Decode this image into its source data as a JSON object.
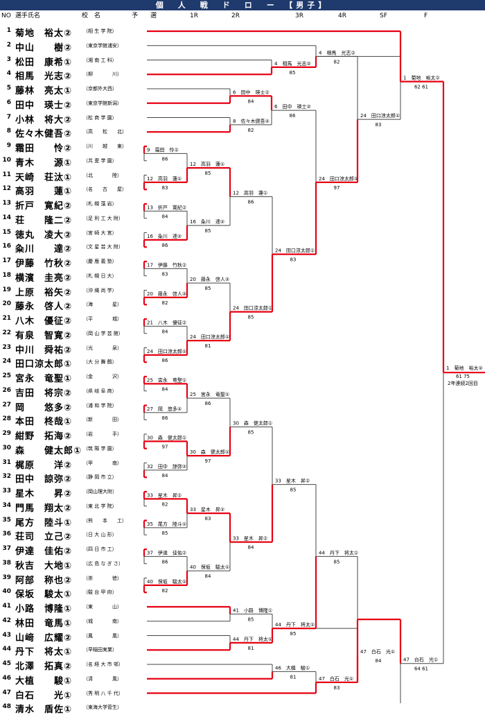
{
  "title": "個　人　戦　ド　ロ　ー　【男子】",
  "headers": {
    "no": "NO",
    "name": "選手氏名",
    "school": "校　名",
    "prelim": "予　　選",
    "r1": "1R",
    "r2": "2R",
    "r3": "3R",
    "r4": "4R",
    "sf": "SF",
    "f": "F"
  },
  "players": [
    {
      "no": "1",
      "name": "菊地　裕太②",
      "school": "（相 生 学 院）"
    },
    {
      "no": "2",
      "name": "中山　　樹②",
      "school": "（東京学館浦安）"
    },
    {
      "no": "3",
      "name": "松田　康希①",
      "school": "（湘 南 工 科）"
    },
    {
      "no": "4",
      "name": "相馬　光志②",
      "school": "（柳　　　　川）"
    },
    {
      "no": "5",
      "name": "藤林　亮太①",
      "school": "（京都外大西）"
    },
    {
      "no": "6",
      "name": "田中　瑛士②",
      "school": "（東京学館新潟）"
    },
    {
      "no": "7",
      "name": "小林　将大②",
      "school": "（松 商 学 園）"
    },
    {
      "no": "8",
      "name": "佐々木健吾②",
      "school": "（高　　松　　北）"
    },
    {
      "no": "9",
      "name": "霜田　　怜②",
      "school": "（川　　越　　東）"
    },
    {
      "no": "10",
      "name": "青木　　源①",
      "school": "（共 愛 学 園）"
    },
    {
      "no": "11",
      "name": "天崎　荘汰①",
      "school": "（北　　　　陸）"
    },
    {
      "no": "12",
      "name": "高羽　　蓮①",
      "school": "（名　　古　　屋）"
    },
    {
      "no": "13",
      "name": "折戸　寛紀②",
      "school": "（札 幌 藻 岩）"
    },
    {
      "no": "14",
      "name": "荘　　隆二②",
      "school": "（足 利 工 大 附）"
    },
    {
      "no": "15",
      "name": "徳丸　凌大②",
      "school": "（宮 崎 大 宮）"
    },
    {
      "no": "16",
      "name": "粂川　　達②",
      "school": "（文 星 芸 大 附）"
    },
    {
      "no": "17",
      "name": "伊藤　竹秋②",
      "school": "（慶 應 義 塾）"
    },
    {
      "no": "18",
      "name": "横濱　圭亮②",
      "school": "（札 幌 日 大）"
    },
    {
      "no": "19",
      "name": "上原　裕矢②",
      "school": "（沖 縄 尚 学）"
    },
    {
      "no": "20",
      "name": "藤永　啓人②",
      "school": "（海　　　　星）"
    },
    {
      "no": "21",
      "name": "八木　優征②",
      "school": "（平　　　　城）"
    },
    {
      "no": "22",
      "name": "有泉　智寛②",
      "school": "（岡 山 学 芸 館）"
    },
    {
      "no": "23",
      "name": "中川　舜祐②",
      "school": "（光　　　　泉）"
    },
    {
      "no": "24",
      "name": "田口涼太郎①",
      "school": "（大 分 舞 鶴）"
    },
    {
      "no": "25",
      "name": "宮永　竜聖①",
      "school": "（金　　　　沢）"
    },
    {
      "no": "26",
      "name": "吉田　将宗②",
      "school": "（県 岐 阜 商）"
    },
    {
      "no": "27",
      "name": "岡　　悠多②",
      "school": "（浦 和 学 院）"
    },
    {
      "no": "28",
      "name": "本田　柊哉①",
      "school": "（新　　　　田）"
    },
    {
      "no": "29",
      "name": "紺野　拓海②",
      "school": "（岩　　　　手）"
    },
    {
      "no": "30",
      "name": "森　　健太郎①",
      "school": "（筑 陽 学 園）"
    },
    {
      "no": "31",
      "name": "梶原　　洋②",
      "school": "（甲　　　　南）"
    },
    {
      "no": "32",
      "name": "田中　諒弥②",
      "school": "（静 岡 市 立）"
    },
    {
      "no": "33",
      "name": "星木　　昇②",
      "school": "（岡山理大附）"
    },
    {
      "no": "34",
      "name": "門馬　翔太②",
      "school": "（東 北 学 院）"
    },
    {
      "no": "35",
      "name": "尾方　陸斗①",
      "school": "（熊　　本　　工）"
    },
    {
      "no": "36",
      "name": "荘司　立己②",
      "school": "（日 大 山 形）"
    },
    {
      "no": "37",
      "name": "伊達　佳佑②",
      "school": "（四 日 市 工）"
    },
    {
      "no": "38",
      "name": "秋吉　大地①",
      "school": "（広 島 な ぎ さ）"
    },
    {
      "no": "39",
      "name": "阿部　称也②",
      "school": "（崇　　　　徳）"
    },
    {
      "no": "40",
      "name": "保坂　駿太①",
      "school": "（駿 台 甲 府）"
    },
    {
      "no": "41",
      "name": "小路　博隆①",
      "school": "（東　　　　山）"
    },
    {
      "no": "42",
      "name": "林田　竜馬①",
      "school": "（城　　　　南）"
    },
    {
      "no": "43",
      "name": "山﨑　広耀②",
      "school": "（鳳　　　　凰）"
    },
    {
      "no": "44",
      "name": "丹下　将太①",
      "school": "（早稲田実業）"
    },
    {
      "no": "45",
      "name": "北澤　拓真②",
      "school": "（名 経 大 市 邨）"
    },
    {
      "no": "46",
      "name": "大植　　駿①",
      "school": "（清　　　　風）"
    },
    {
      "no": "47",
      "name": "白石　　光①",
      "school": "（秀 明 八 千 代）"
    },
    {
      "no": "48",
      "name": "清水　盾佐①",
      "school": "（東海大学菅生）"
    }
  ],
  "results": {
    "prelim": [
      {
        "label": "4　相馬　光志②",
        "score": "85"
      },
      {
        "label": "6　田中　瑛士②",
        "score": "84"
      },
      {
        "label": "8　佐々木健吾②",
        "score": "82"
      },
      {
        "label": "9　霜田　怜②",
        "score": "86"
      },
      {
        "label": "12　高羽　蓮①",
        "score": "83"
      },
      {
        "label": "13　折戸　寛紀②",
        "score": "84"
      },
      {
        "label": "16　粂川　達②",
        "score": "86"
      },
      {
        "label": "17　伊藤　竹秋②",
        "score": "83"
      },
      {
        "label": "20　藤永　啓人②",
        "score": "82"
      },
      {
        "label": "21　八木　優征②",
        "score": "84"
      },
      {
        "label": "24　田口涼太郎①",
        "score": "86"
      },
      {
        "label": "25　宮永　竜聖①",
        "score": "84"
      },
      {
        "label": "27　岡　悠多②",
        "score": "86"
      },
      {
        "label": "30　森　健太郎①",
        "score": "97"
      },
      {
        "label": "32　田中　諒弥②",
        "score": "84"
      },
      {
        "label": "33　星木　昇②",
        "score": "82"
      },
      {
        "label": "35　尾方　陸斗①",
        "score": "85"
      },
      {
        "label": "37　伊達　佳佑②",
        "score": "86"
      },
      {
        "label": "40　保坂　駿太①",
        "score": "82"
      },
      {
        "label": "41　小路　博隆①",
        "score": "85"
      },
      {
        "label": "44　丹下　将太①",
        "score": "81"
      },
      {
        "label": "46　大植　駿①",
        "score": "81"
      }
    ],
    "r1": [
      {
        "label": "6　田中　瑛士②",
        "score": "86"
      },
      {
        "label": "12　高羽　蓮①",
        "score": "85"
      },
      {
        "label": "16　粂川　達②",
        "score": "85"
      },
      {
        "label": "20　藤永　啓人②",
        "score": "85"
      },
      {
        "label": "24　田口涼太郎①",
        "score": "81"
      },
      {
        "label": "25　宮永　竜聖①",
        "score": "86"
      },
      {
        "label": "30　森　健太郎①",
        "score": "97"
      },
      {
        "label": "33　星木　昇②",
        "score": "83"
      },
      {
        "label": "40　保坂　駿太①",
        "score": "84"
      },
      {
        "label": "44　丹下　将太①",
        "score": "85"
      }
    ],
    "r2": [
      {
        "label": "4　相馬　光志②",
        "score": "82"
      },
      {
        "label": "12　高羽　蓮①",
        "score": "86"
      },
      {
        "label": "24　田口涼太郎①",
        "score": "85"
      },
      {
        "label": "30　森　健太郎①",
        "score": "85"
      },
      {
        "label": "33　星木　昇②",
        "score": "84"
      },
      {
        "label": "47　白石　光①",
        "score": "83"
      }
    ],
    "r3": [
      {
        "label": "24　田口涼太郎①",
        "score": "97"
      },
      {
        "label": "24　田口涼太郎①",
        "score": "83"
      },
      {
        "label": "33　星木　昇②",
        "score": "85"
      },
      {
        "label": "44　丹下　将太①",
        "score": "85"
      }
    ],
    "r4": [
      {
        "label": "24　田口涼太郎①",
        "score": "83"
      },
      {
        "label": "47　白石　光①",
        "score": "84"
      }
    ],
    "sf": [
      {
        "label": "1　菊地　裕太②",
        "score": "62 61"
      },
      {
        "label": "47　白石　光①",
        "score": "64 61"
      }
    ],
    "final": {
      "label": "1　菊地　裕太②",
      "score": "61 75",
      "note": "2年連続2回目"
    }
  }
}
